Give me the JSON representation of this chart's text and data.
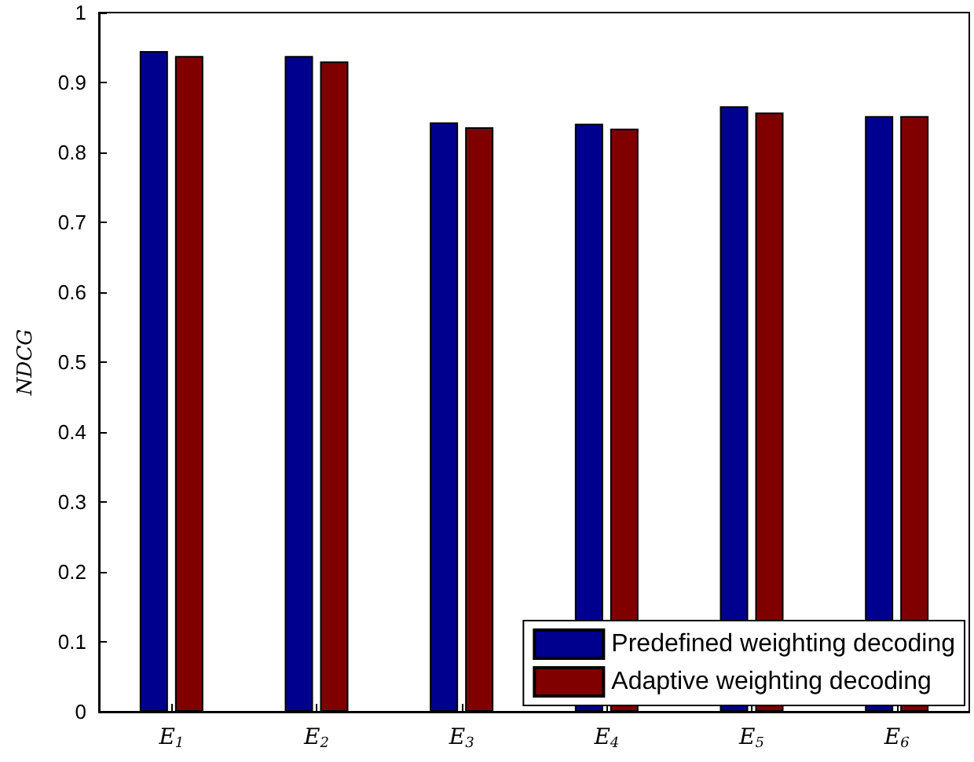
{
  "chart_data": {
    "type": "bar",
    "ylabel": "NDCG",
    "categories": [
      "E$_{1}$",
      "E$_{2}$",
      "E$_{3}$",
      "E$_{4}$",
      "E$_{5}$",
      "E$_{6}$"
    ],
    "series": [
      {
        "name": "Predefined weighting decoding",
        "color": "#00008f",
        "values": [
          0.945,
          0.938,
          0.843,
          0.841,
          0.866,
          0.852
        ]
      },
      {
        "name": "Adaptive weighting decoding",
        "color": "#800000",
        "values": [
          0.938,
          0.93,
          0.836,
          0.834,
          0.857,
          0.852
        ]
      }
    ],
    "ylim": [
      0,
      1
    ],
    "yticks": [
      0,
      0.1,
      0.2,
      0.3,
      0.4,
      0.5,
      0.6,
      0.7,
      0.8,
      0.9,
      1
    ],
    "grid": false,
    "legend": "bottom right"
  }
}
